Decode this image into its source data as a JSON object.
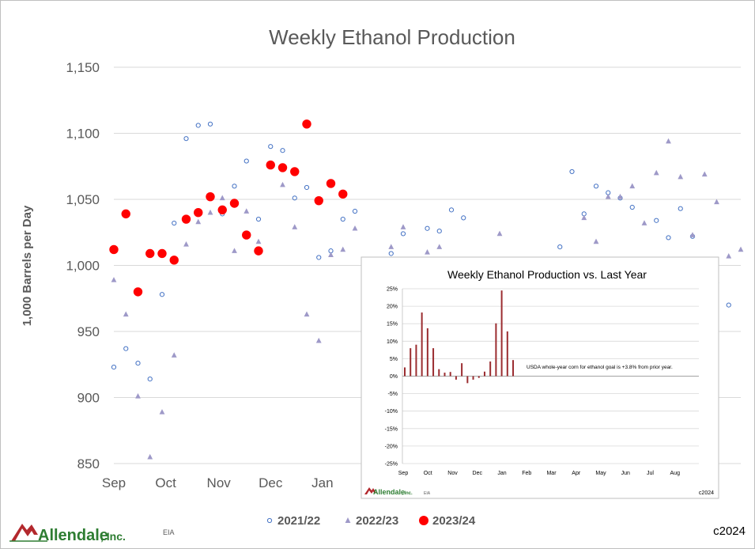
{
  "colors": {
    "s2122": "#4472c4",
    "s2223": "#9e99c8",
    "s2324": "#ff0000",
    "inset_bar": "#9b2d30",
    "text": "#595959",
    "grid": "#d9d9d9"
  },
  "chart_data": [
    {
      "type": "scatter",
      "title": "Weekly Ethanol Production",
      "ylabel": "1,000 Barrels per Day",
      "xlabel": "",
      "ylim": [
        850,
        1150
      ],
      "yticks": [
        "1,150",
        "1,100",
        "1,050",
        "1,000",
        "950",
        "900",
        "850"
      ],
      "ytick_values": [
        1150,
        1100,
        1050,
        1000,
        950,
        900,
        850
      ],
      "xlim": [
        0,
        52
      ],
      "x_unit": "week of marketing year (starting Sep)",
      "xticks": [
        {
          "label": "Sep",
          "x": 0
        },
        {
          "label": "Oct",
          "x": 4.3
        },
        {
          "label": "Nov",
          "x": 8.7
        },
        {
          "label": "Dec",
          "x": 13
        },
        {
          "label": "Jan",
          "x": 17.3
        }
      ],
      "grid": true,
      "legend": "bottom-center",
      "series": [
        {
          "name": "2021/22",
          "marker": "circle-open",
          "color": "#4472c4",
          "points": [
            [
              0,
              923
            ],
            [
              1,
              937
            ],
            [
              2,
              926
            ],
            [
              3,
              914
            ],
            [
              4,
              978
            ],
            [
              5,
              1032
            ],
            [
              6,
              1096
            ],
            [
              7,
              1106
            ],
            [
              8,
              1107
            ],
            [
              9,
              1039
            ],
            [
              10,
              1060
            ],
            [
              11,
              1079
            ],
            [
              12,
              1035
            ],
            [
              13,
              1090
            ],
            [
              14,
              1087
            ],
            [
              15,
              1051
            ],
            [
              16,
              1059
            ],
            [
              17,
              1006
            ],
            [
              18,
              1011
            ],
            [
              19,
              1035
            ],
            [
              20,
              1041
            ],
            [
              23,
              1009
            ],
            [
              24,
              1024
            ],
            [
              26,
              1028
            ],
            [
              27,
              1026
            ],
            [
              28,
              1042
            ],
            [
              29,
              1036
            ],
            [
              37,
              1014
            ],
            [
              38,
              1071
            ],
            [
              39,
              1039
            ],
            [
              40,
              1060
            ],
            [
              41,
              1055
            ],
            [
              42,
              1051
            ],
            [
              43,
              1044
            ],
            [
              45,
              1034
            ],
            [
              46,
              1021
            ],
            [
              47,
              1043
            ],
            [
              48,
              1022
            ],
            [
              50,
              987
            ],
            [
              51,
              970
            ]
          ]
        },
        {
          "name": "2022/23",
          "marker": "triangle",
          "color": "#9e99c8",
          "points": [
            [
              0,
              989
            ],
            [
              1,
              963
            ],
            [
              2,
              901
            ],
            [
              3,
              855
            ],
            [
              4,
              889
            ],
            [
              5,
              932
            ],
            [
              6,
              1016
            ],
            [
              7,
              1033
            ],
            [
              8,
              1040
            ],
            [
              9,
              1051
            ],
            [
              10,
              1011
            ],
            [
              11,
              1041
            ],
            [
              12,
              1018
            ],
            [
              14,
              1061
            ],
            [
              15,
              1029
            ],
            [
              16,
              963
            ],
            [
              17,
              943
            ],
            [
              18,
              1008
            ],
            [
              19,
              1012
            ],
            [
              20,
              1028
            ],
            [
              23,
              1014
            ],
            [
              24,
              1029
            ],
            [
              26,
              1010
            ],
            [
              27,
              1014
            ],
            [
              32,
              1024
            ],
            [
              39,
              1036
            ],
            [
              40,
              1018
            ],
            [
              41,
              1052
            ],
            [
              42,
              1052
            ],
            [
              43,
              1060
            ],
            [
              44,
              1032
            ],
            [
              45,
              1070
            ],
            [
              46,
              1094
            ],
            [
              47,
              1067
            ],
            [
              48,
              1023
            ],
            [
              49,
              1069
            ],
            [
              50,
              1048
            ],
            [
              51,
              1007
            ],
            [
              52,
              1012
            ]
          ]
        },
        {
          "name": "2023/24",
          "marker": "circle-filled",
          "color": "#ff0000",
          "points": [
            [
              0,
              1012
            ],
            [
              1,
              1039
            ],
            [
              2,
              980
            ],
            [
              3,
              1009
            ],
            [
              4,
              1009
            ],
            [
              5,
              1004
            ],
            [
              6,
              1035
            ],
            [
              7,
              1040
            ],
            [
              8,
              1052
            ],
            [
              9,
              1042
            ],
            [
              10,
              1047
            ],
            [
              11,
              1023
            ],
            [
              12,
              1011
            ],
            [
              13,
              1076
            ],
            [
              14,
              1074
            ],
            [
              15,
              1071
            ],
            [
              16,
              1107
            ],
            [
              17,
              1049
            ],
            [
              18,
              1062
            ],
            [
              19,
              1054
            ]
          ]
        }
      ]
    },
    {
      "type": "bar",
      "title": "Weekly Ethanol Production vs. Last Year",
      "ylim": [
        -25,
        25
      ],
      "yticks": [
        "25%",
        "20%",
        "15%",
        "10%",
        "5%",
        "0%",
        "-5%",
        "-10%",
        "-15%",
        "-20%",
        "-25%"
      ],
      "ytick_values": [
        25,
        20,
        15,
        10,
        5,
        0,
        -5,
        -10,
        -15,
        -20,
        -25
      ],
      "xticks": [
        "Sep",
        "Oct",
        "Nov",
        "Dec",
        "Jan",
        "Feb",
        "Mar",
        "Apr",
        "May",
        "Jun",
        "Jul",
        "Aug"
      ],
      "weeks_total": 52,
      "values": [
        2.5,
        8.0,
        9.0,
        18.2,
        13.7,
        8.0,
        2.0,
        1.0,
        1.2,
        -1.0,
        3.7,
        -2.0,
        -1.0,
        -0.5,
        1.3,
        4.2,
        15.1,
        24.5,
        12.8,
        4.6
      ],
      "annotation": "USDA whole-year corn for ethanol goal is +3.8% from prior year.",
      "grid": true
    }
  ],
  "footer": {
    "logo_text": "Allendale",
    "logo_suffix": ", Inc.",
    "source": "EIA",
    "copyright": "c2024"
  },
  "inset_footer": {
    "logo_text": "Allendale",
    "logo_suffix": ", Inc.",
    "source": "EIA",
    "copyright": "c2024"
  }
}
